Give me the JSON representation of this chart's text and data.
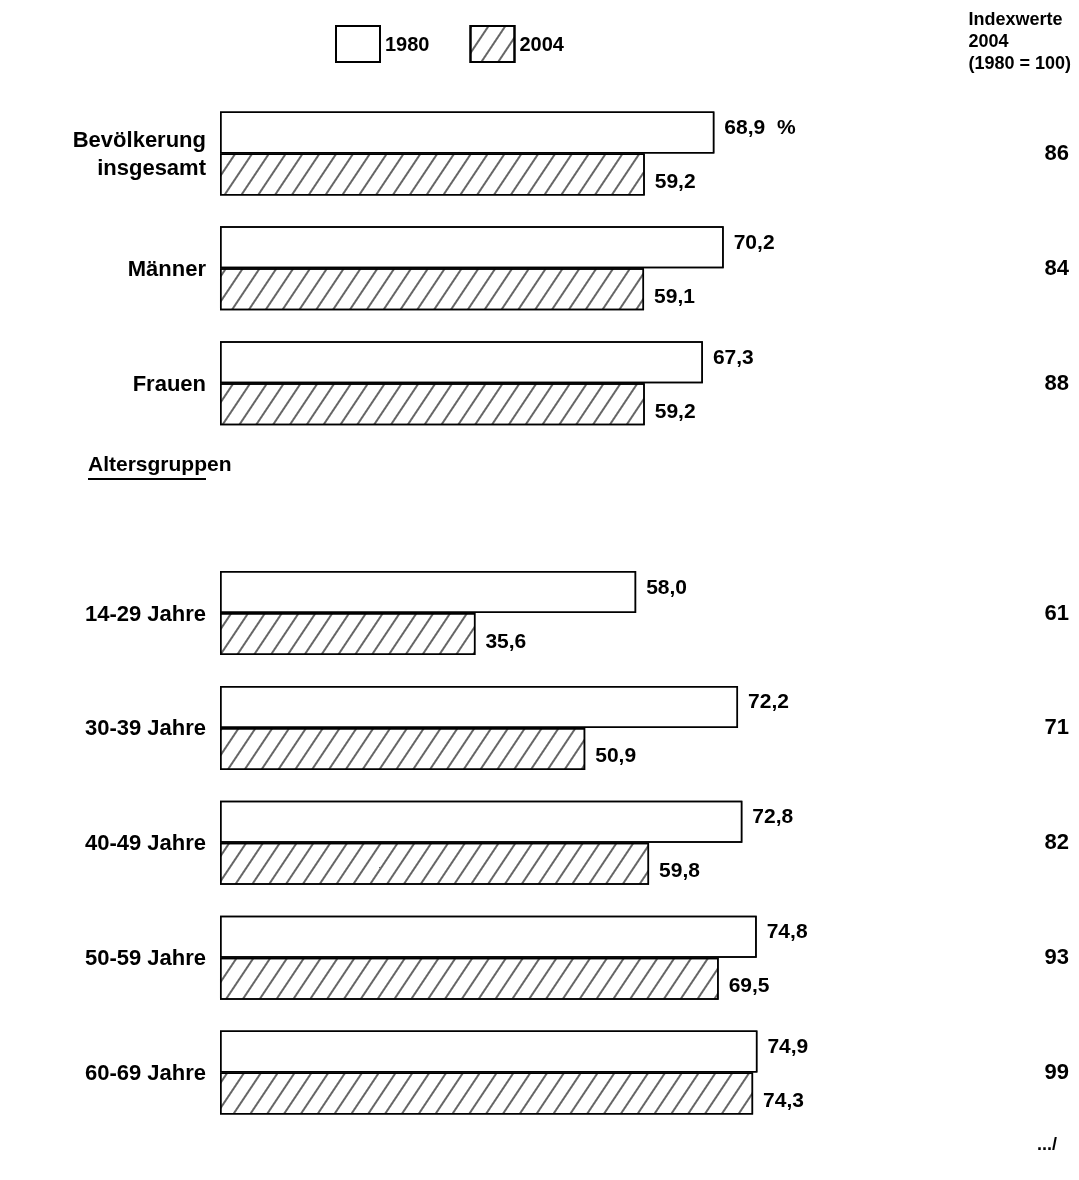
{
  "chart_data": {
    "type": "bar",
    "orientation": "horizontal",
    "categories": [
      "Bevölkerung\ninsgesamt",
      "Männer",
      "Frauen",
      null,
      "14-29 Jahre",
      "30-39 Jahre",
      "40-49 Jahre",
      "50-59 Jahre",
      "60-69 Jahre"
    ],
    "series": [
      {
        "name": "1980",
        "color": "#ffffff",
        "values": [
          68.9,
          70.2,
          67.3,
          null,
          58.0,
          72.2,
          72.8,
          74.8,
          74.9
        ],
        "value_labels": [
          "68,9  %",
          "70,2",
          "67,3",
          null,
          "58,0",
          "72,2",
          "72,8",
          "74,8",
          "74,9"
        ]
      },
      {
        "name": "2004",
        "color": "#ffffff",
        "values": [
          59.2,
          59.1,
          59.2,
          null,
          35.6,
          50.9,
          59.8,
          69.5,
          74.3
        ],
        "value_labels": [
          "59,2",
          "59,1",
          "59,2",
          null,
          "35,6",
          "50,9",
          "59,8",
          "69,5",
          "74,3"
        ]
      }
    ],
    "tick_labels": "y",
    "legend": "top",
    "annotations": [
      "Indexwerte\n2004\n(1980 = 100)",
      "Altersgruppen",
      ".../",
      "86",
      "84",
      "88",
      "61",
      "71",
      "82",
      "93",
      "99"
    ]
  }
}
